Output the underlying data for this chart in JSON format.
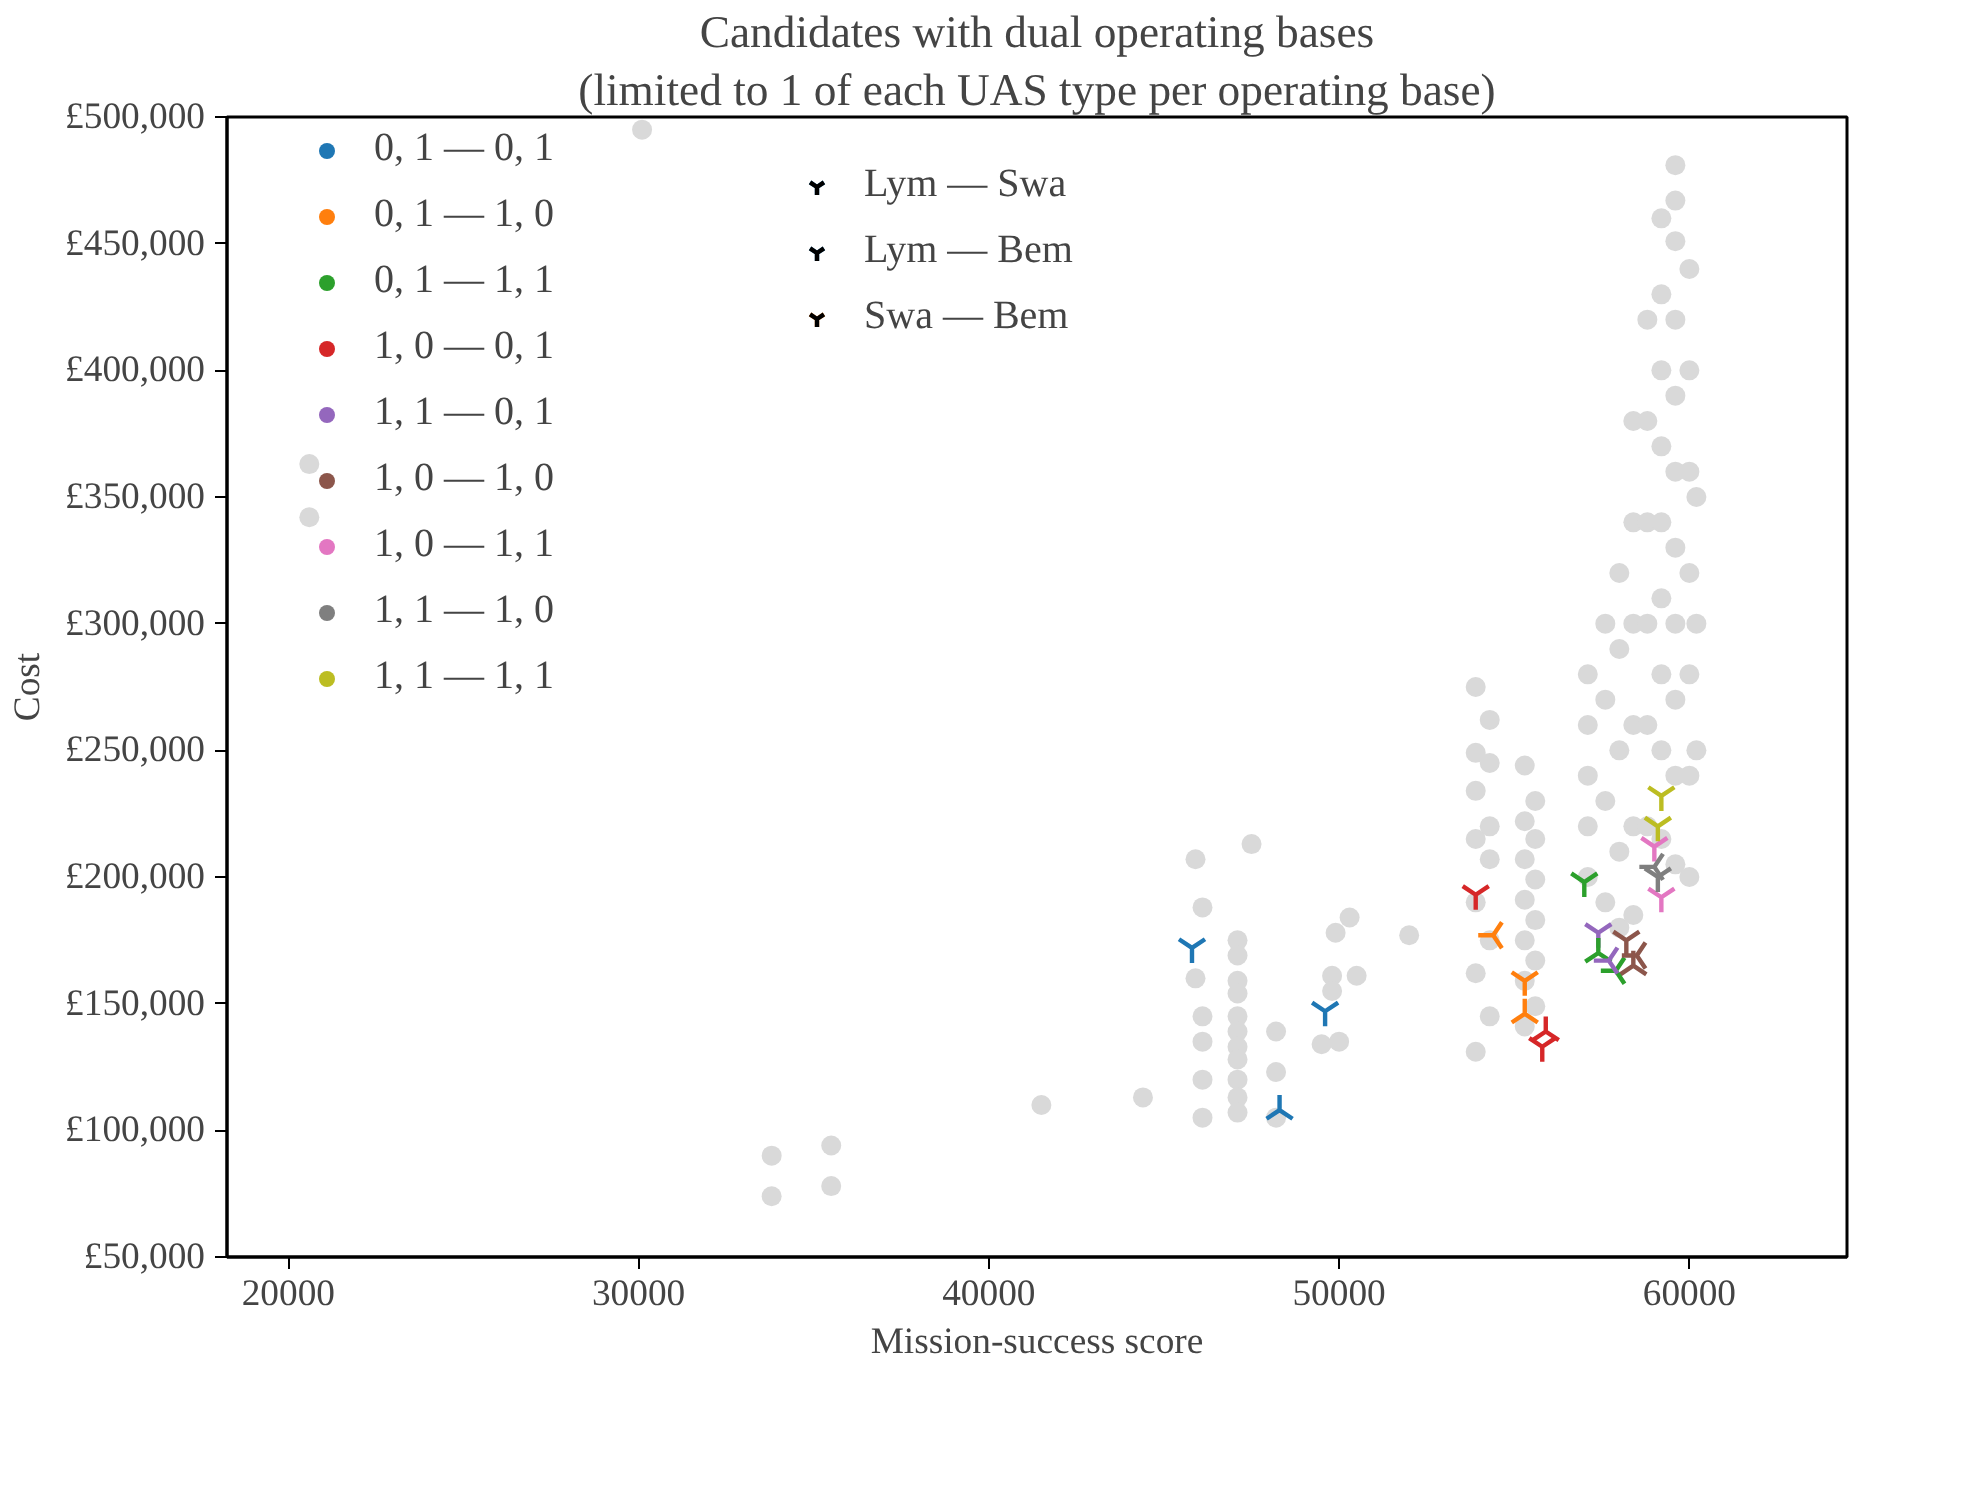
{
  "chart_data": {
    "type": "scatter",
    "title": "Candidates with dual operating bases",
    "subtitle": "(limited to 1 of each UAS type per operating base)",
    "xlabel": "Mission-success score",
    "ylabel": "Cost",
    "xlim": [
      18250,
      64500
    ],
    "ylim": [
      50000,
      500000
    ],
    "xticks": [
      20000,
      30000,
      40000,
      50000,
      60000
    ],
    "yticks": [
      {
        "value": 50000,
        "label": "£50,000"
      },
      {
        "value": 100000,
        "label": "£100,000"
      },
      {
        "value": 150000,
        "label": "£150,000"
      },
      {
        "value": 200000,
        "label": "£200,000"
      },
      {
        "value": 250000,
        "label": "£250,000"
      },
      {
        "value": 300000,
        "label": "£300,000"
      },
      {
        "value": 350000,
        "label": "£350,000"
      },
      {
        "value": 400000,
        "label": "£400,000"
      },
      {
        "value": 450000,
        "label": "£450,000"
      },
      {
        "value": 500000,
        "label": "£500,000"
      }
    ],
    "grid": false,
    "legend": "top left",
    "series": [
      {
        "color": "#d9d9d9",
        "marker": "circle",
        "x": [
          20600,
          20600,
          30100,
          33800,
          33800,
          35500,
          35500,
          41500,
          44400,
          45900,
          46100,
          45900,
          46100,
          46100,
          46100,
          46100,
          47500,
          47100,
          47100,
          47100,
          47100,
          47100,
          47100,
          47100,
          47100,
          47100,
          47100,
          47100,
          48200,
          48200,
          48200,
          49900,
          50300,
          49800,
          50500,
          49800,
          49500,
          50000,
          52000,
          53900,
          54300,
          53900,
          54300,
          53900,
          54300,
          53900,
          54300,
          53900,
          54300,
          53900,
          54300,
          53900,
          55300,
          55600,
          55300,
          55600,
          55300,
          55600,
          55300,
          55600,
          55300,
          55600,
          55300,
          55600,
          55300,
          57100,
          57100,
          57100,
          57100,
          57100,
          57600,
          57600,
          57600,
          57600,
          58000,
          58000,
          58000,
          58000,
          58000,
          58400,
          58400,
          58400,
          58400,
          58400,
          58400,
          58800,
          58800,
          58800,
          58800,
          58800,
          58800,
          59200,
          59200,
          59200,
          59200,
          59200,
          59200,
          59200,
          59200,
          59200,
          59600,
          59600,
          59600,
          59600,
          59600,
          59600,
          59600,
          59600,
          59600,
          59600,
          59600,
          60000,
          60000,
          60000,
          60000,
          60000,
          60000,
          60000,
          60200,
          60200,
          60200
        ],
        "values": [
          363000,
          342000,
          495000,
          90000,
          74000,
          94000,
          78000,
          110000,
          113000,
          207000,
          188000,
          160000,
          145000,
          135000,
          120000,
          105000,
          213000,
          175000,
          169000,
          159000,
          154000,
          145000,
          139000,
          133000,
          128000,
          120000,
          113000,
          107000,
          139000,
          123000,
          105000,
          178000,
          184000,
          161000,
          161000,
          155000,
          134000,
          135000,
          177000,
          275000,
          262000,
          249000,
          245000,
          234000,
          220000,
          215000,
          207000,
          190000,
          175000,
          162000,
          145000,
          131000,
          244000,
          230000,
          222000,
          215000,
          207000,
          199000,
          191000,
          183000,
          175000,
          167000,
          159000,
          149000,
          141000,
          280000,
          260000,
          240000,
          220000,
          200000,
          300000,
          270000,
          230000,
          190000,
          320000,
          290000,
          250000,
          210000,
          180000,
          380000,
          340000,
          300000,
          260000,
          220000,
          185000,
          420000,
          380000,
          340000,
          300000,
          260000,
          220000,
          460000,
          430000,
          400000,
          370000,
          340000,
          310000,
          280000,
          250000,
          215000,
          481000,
          467000,
          451000,
          420000,
          390000,
          360000,
          330000,
          300000,
          270000,
          240000,
          205000,
          440000,
          400000,
          360000,
          320000,
          280000,
          240000,
          200000,
          350000,
          300000,
          250000
        ]
      },
      {
        "name": "0, 1 — 0, 1",
        "color": "#1f77b4"
      },
      {
        "name": "0, 1 — 1, 0",
        "color": "#ff7f0e"
      },
      {
        "name": "0, 1 — 1, 1",
        "color": "#2ca02c"
      },
      {
        "name": "1, 0 — 0, 1",
        "color": "#d62728"
      },
      {
        "name": "1, 1 — 0, 1",
        "color": "#9467bd"
      },
      {
        "name": "1, 0 — 1, 0",
        "color": "#8c564b"
      },
      {
        "name": "1, 0 — 1, 1",
        "color": "#e377c2"
      },
      {
        "name": "1, 1 — 1, 0",
        "color": "#7f7f7f"
      },
      {
        "name": "1, 1 — 1, 1",
        "color": "#bcbd22"
      },
      {
        "name": "Lym — Swa",
        "color": "#000000",
        "x": [
          45800,
          49600,
          55300,
          57000,
          53900,
          55800,
          57400,
          58200,
          59000,
          59200,
          59100,
          59200,
          59100
        ],
        "values": [
          172000,
          147000,
          159000,
          198000,
          193000,
          133000,
          178000,
          175000,
          212000,
          192000,
          200000,
          232000,
          220000
        ],
        "colors": [
          "#1f77b4",
          "#1f77b4",
          "#ff7f0e",
          "#2ca02c",
          "#d62728",
          "#d62728",
          "#9467bd",
          "#8c564b",
          "#e377c2",
          "#e377c2",
          "#7f7f7f",
          "#bcbd22",
          "#bcbd22"
        ]
      },
      {
        "name": "Lym — Bem",
        "color": "#000000",
        "x": [
          48300,
          55300,
          57400,
          55900,
          58400
        ],
        "values": [
          108000,
          146000,
          170000,
          139000,
          165000
        ],
        "colors": [
          "#1f77b4",
          "#ff7f0e",
          "#2ca02c",
          "#d62728",
          "#8c564b"
        ]
      },
      {
        "name": "Swa — Bem",
        "color": "#000000",
        "x": [
          54400,
          57900,
          57700,
          58500,
          59000
        ],
        "values": [
          177000,
          163000,
          167000,
          169000,
          204000
        ],
        "colors": [
          "#ff7f0e",
          "#2ca02c",
          "#9467bd",
          "#8c564b",
          "#7f7f7f"
        ]
      }
    ]
  }
}
